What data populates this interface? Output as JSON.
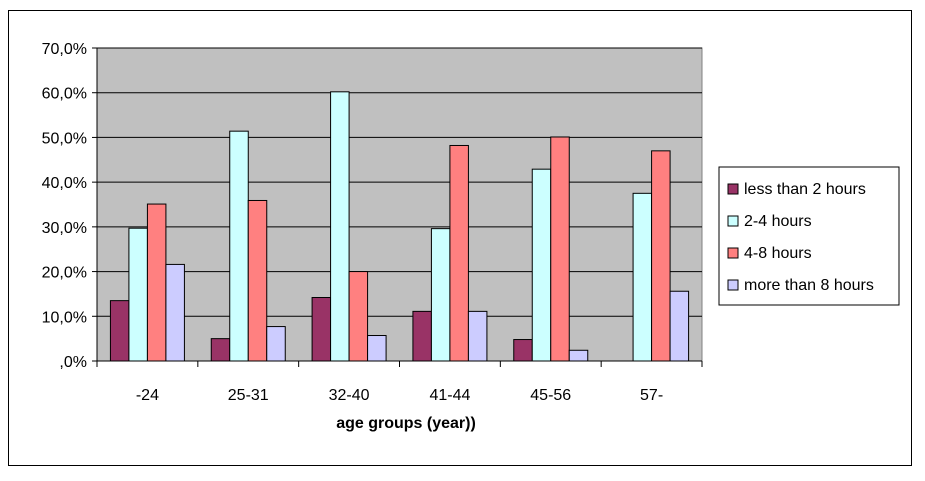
{
  "chart_data": {
    "type": "bar",
    "categories": [
      "-24",
      "25-31",
      "32-40",
      "41-44",
      "45-56",
      "57-"
    ],
    "series": [
      {
        "name": "less than 2 hours",
        "values": [
          13.5,
          5.0,
          14.2,
          11.1,
          4.8,
          0
        ],
        "color": "#993366"
      },
      {
        "name": "2-4 hours",
        "values": [
          29.7,
          51.4,
          60.2,
          29.6,
          42.9,
          37.5
        ],
        "color": "#CCFFFF"
      },
      {
        "name": "4-8 hours",
        "values": [
          35.1,
          35.9,
          20.0,
          48.2,
          50.1,
          47.0
        ],
        "color": "#FF8080"
      },
      {
        "name": "more than 8 hours",
        "values": [
          21.6,
          7.7,
          5.7,
          11.1,
          2.4,
          15.6
        ],
        "color": "#CCCCFF"
      }
    ],
    "y_ticks": [
      "70,0%",
      "60,0%",
      "50,0%",
      "40,0%",
      "30,0%",
      "20,0%",
      "10,0%",
      ",0%"
    ],
    "ylim": [
      0,
      70
    ],
    "xlabel": "age groups (year))",
    "ylabel": "",
    "title": "",
    "grid": true,
    "plot_background": "#C0C0C0",
    "legend_position": "right"
  }
}
